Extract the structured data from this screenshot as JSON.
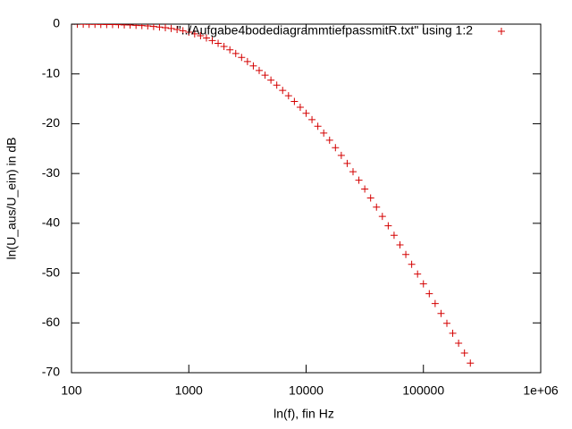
{
  "chart_data": {
    "type": "scatter",
    "x_label": "ln(f), fin Hz",
    "y_label": "ln(U_aus/U_ein) in dB",
    "log_x": true,
    "grid": false,
    "legend": "top-right",
    "xlim": [
      100,
      1000000
    ],
    "ylim": [
      -70,
      0
    ],
    "xticks": [
      100,
      1000,
      10000,
      100000,
      {
        "value": 1000000,
        "label": "1e+06"
      }
    ],
    "yticks": [
      0,
      -10,
      -20,
      -30,
      -40,
      -50,
      -60,
      -70
    ],
    "series": [
      {
        "name": "\"../Aufgabe4bodediagrammtiefpassmitR.txt\" using 1:2",
        "color": "#d40000",
        "marker": "+",
        "x": [
          100,
          112.2,
          125.9,
          141.3,
          158.5,
          177.8,
          199.5,
          223.9,
          251.2,
          281.8,
          316.2,
          354.8,
          398.1,
          446.7,
          501.2,
          562.3,
          631.0,
          707.9,
          794.3,
          891.3,
          1000,
          1122,
          1259,
          1413,
          1585,
          1778,
          1995,
          2239,
          2512,
          2818,
          3162,
          3548,
          3981,
          4467,
          5012,
          5623,
          6310,
          7079,
          7943,
          8913,
          10000,
          11220,
          12590,
          14130,
          15850,
          17780,
          19950,
          22390,
          25120,
          28180,
          31620,
          35480,
          39810,
          44670,
          50120,
          56230,
          63100,
          70790,
          79430,
          89130,
          100000,
          112200,
          125900,
          141300,
          158500,
          177800,
          199500,
          223900,
          251200
        ],
        "values": [
          -0.02,
          -0.02,
          -0.03,
          -0.04,
          -0.05,
          -0.06,
          -0.08,
          -0.1,
          -0.12,
          -0.15,
          -0.19,
          -0.24,
          -0.3,
          -0.37,
          -0.46,
          -0.58,
          -0.71,
          -0.88,
          -1.08,
          -1.33,
          -1.61,
          -1.95,
          -2.34,
          -2.79,
          -3.3,
          -3.86,
          -4.49,
          -5.17,
          -5.9,
          -6.69,
          -7.52,
          -8.39,
          -9.3,
          -10.25,
          -11.23,
          -12.25,
          -13.3,
          -14.39,
          -15.52,
          -16.69,
          -17.91,
          -19.18,
          -20.5,
          -21.88,
          -23.32,
          -24.81,
          -26.36,
          -27.98,
          -29.64,
          -31.35,
          -33.11,
          -34.92,
          -36.75,
          -38.61,
          -40.5,
          -42.41,
          -44.33,
          -46.27,
          -48.23,
          -50.19,
          -52.16,
          -54.13,
          -56.12,
          -58.1,
          -60.09,
          -62.08,
          -64.07,
          -66.06,
          -68.06
        ]
      }
    ]
  }
}
